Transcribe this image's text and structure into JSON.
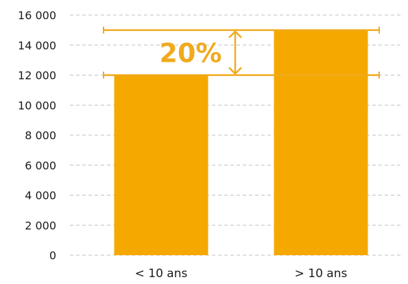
{
  "chart_data": {
    "type": "bar",
    "categories": [
      "< 10 ans",
      "> 10 ans"
    ],
    "values": [
      12000,
      15000
    ],
    "ylim": [
      0,
      16000
    ],
    "yticks": [
      0,
      2000,
      4000,
      6000,
      8000,
      10000,
      12000,
      14000,
      16000
    ],
    "ytick_labels": [
      "0",
      "2 000",
      "4 000",
      "6 000",
      "8 000",
      "10 000",
      "12 000",
      "14 000",
      "16 000"
    ],
    "grid": true,
    "legend": "none",
    "annotation": {
      "text": "20%",
      "from_value": 12000,
      "to_value": 15000
    },
    "colors": {
      "bar": "#f5a800",
      "annotation": "#f0aa1e",
      "grid": "#bfbfbf"
    }
  }
}
